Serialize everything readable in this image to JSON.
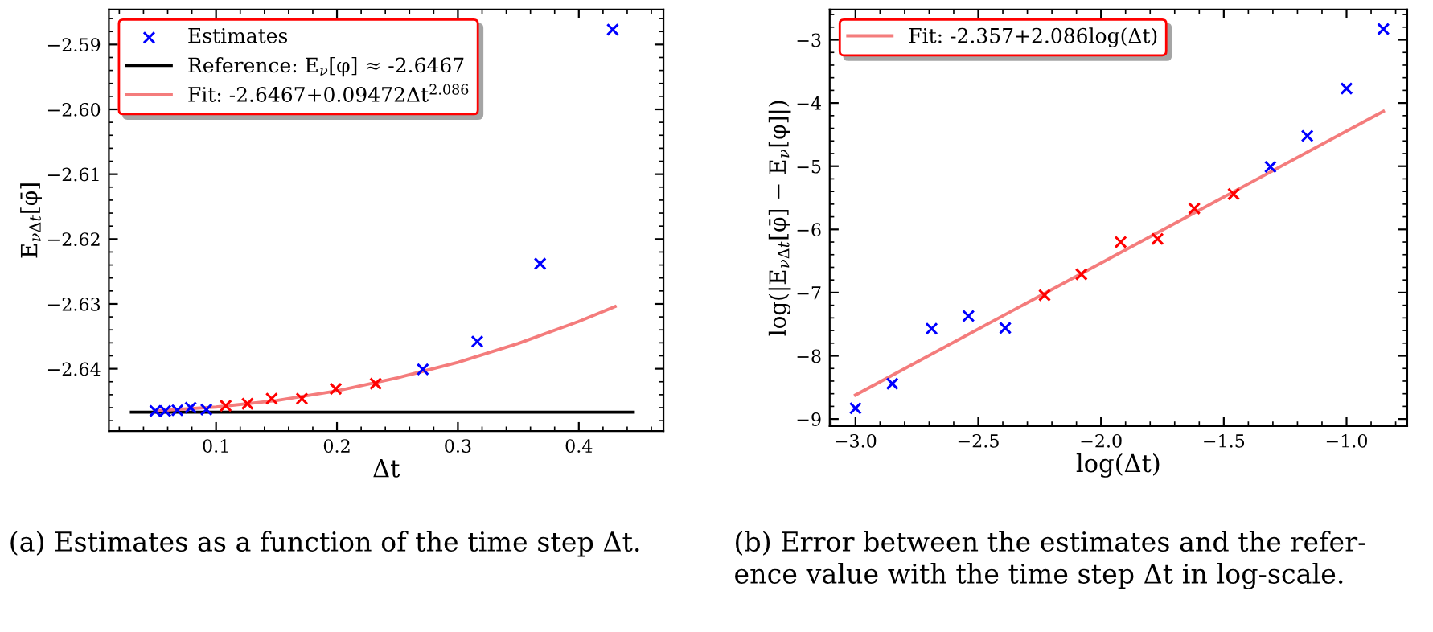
{
  "chart_data": [
    {
      "type": "scatter",
      "xlabel": "Δt",
      "ylabel": "E$_{νΔt}$[φ̄]",
      "xlim": [
        0.0114,
        0.47
      ],
      "ylim": [
        -2.6496,
        -2.5846
      ],
      "xticks": [
        {
          "value": 0.1,
          "label": "0.1"
        },
        {
          "value": 0.2,
          "label": "0.2"
        },
        {
          "value": 0.3,
          "label": "0.3"
        },
        {
          "value": 0.4,
          "label": "0.4"
        }
      ],
      "yticks": [
        {
          "value": -2.64,
          "label": "−2.64"
        },
        {
          "value": -2.63,
          "label": "−2.63"
        },
        {
          "value": -2.62,
          "label": "−2.62"
        },
        {
          "value": -2.61,
          "label": "−2.61"
        },
        {
          "value": -2.6,
          "label": "−2.60"
        },
        {
          "value": -2.59,
          "label": "−2.59"
        }
      ],
      "grid": false,
      "legend": "top left",
      "series": [
        {
          "name": "Estimates",
          "marker": "cross",
          "x": [
            0.0498,
            0.058,
            0.068,
            0.079,
            0.092,
            0.108,
            0.126,
            0.146,
            0.171,
            0.199,
            0.232,
            0.271,
            0.316,
            0.368,
            0.428
          ],
          "values": [
            -2.6465,
            -2.6465,
            -2.6464,
            -2.646,
            -2.6463,
            -2.6457,
            -2.6454,
            -2.6446,
            -2.6446,
            -2.6431,
            -2.6423,
            -2.6401,
            -2.6358,
            -2.6238,
            -2.5877
          ],
          "colors": [
            "#0000ff",
            "#0000ff",
            "#0000ff",
            "#0000ff",
            "#0000ff",
            "#ff0000",
            "#ff0000",
            "#ff0000",
            "#ff0000",
            "#ff0000",
            "#ff0000",
            "#0000ff",
            "#0000ff",
            "#0000ff",
            "#0000ff"
          ]
        },
        {
          "name": "Reference: E$_{ν}$[φ] ≈ -2.6467",
          "type": "line",
          "color": "#000000",
          "x": [
            0.03,
            0.445
          ],
          "values": [
            -2.6467,
            -2.6467
          ]
        },
        {
          "name": "Fit: -2.6467+0.09472Δt$^{2.086}$",
          "type": "line",
          "color": "#f47c7c",
          "x": [
            0.05,
            0.1,
            0.15,
            0.2,
            0.25,
            0.3,
            0.35,
            0.4,
            0.43
          ],
          "values": [
            -2.6465,
            -2.6459,
            -2.6449,
            -2.6434,
            -2.6414,
            -2.639,
            -2.6361,
            -2.6327,
            -2.6304
          ]
        }
      ],
      "annotations": [
        "(a) Estimates as a function of the time step Δt."
      ]
    },
    {
      "type": "scatter",
      "xlabel": "log(Δt)",
      "ylabel": "log(|E$_{νΔt}$[φ̄] − E$_{ν}$[φ]|)",
      "xlim": [
        -3.105,
        -0.753
      ],
      "ylim": [
        -9.11,
        -2.52
      ],
      "xticks": [
        {
          "value": -3.0,
          "label": "−3.0"
        },
        {
          "value": -2.5,
          "label": "−2.5"
        },
        {
          "value": -2.0,
          "label": "−2.0"
        },
        {
          "value": -1.5,
          "label": "−1.5"
        },
        {
          "value": -1.0,
          "label": "−1.0"
        }
      ],
      "yticks": [
        {
          "value": -9,
          "label": "−9"
        },
        {
          "value": -8,
          "label": "−8"
        },
        {
          "value": -7,
          "label": "−7"
        },
        {
          "value": -6,
          "label": "−6"
        },
        {
          "value": -5,
          "label": "−5"
        },
        {
          "value": -4,
          "label": "−4"
        },
        {
          "value": -3,
          "label": "−3"
        }
      ],
      "grid": false,
      "legend": "top left",
      "series": [
        {
          "marker": "cross",
          "x": [
            -3.0,
            -2.85,
            -2.69,
            -2.54,
            -2.39,
            -2.23,
            -2.08,
            -1.92,
            -1.77,
            -1.62,
            -1.46,
            -1.31,
            -1.16,
            -1.0,
            -0.85
          ],
          "values": [
            -8.83,
            -8.44,
            -7.57,
            -7.37,
            -7.56,
            -7.04,
            -6.71,
            -6.2,
            -6.15,
            -5.67,
            -5.44,
            -5.01,
            -4.52,
            -3.77,
            -2.83
          ],
          "colors": [
            "#0000ff",
            "#0000ff",
            "#0000ff",
            "#0000ff",
            "#0000ff",
            "#ff0000",
            "#ff0000",
            "#ff0000",
            "#ff0000",
            "#ff0000",
            "#ff0000",
            "#0000ff",
            "#0000ff",
            "#0000ff",
            "#0000ff"
          ]
        },
        {
          "name": "Fit: -2.357+2.086log(Δt)",
          "type": "line",
          "color": "#f47c7c",
          "x": [
            -3.0,
            -0.85
          ],
          "values": [
            -8.62,
            -4.13
          ]
        }
      ],
      "annotations": [
        "(b) Error between the estimates and the refer-\nence value with the time step Δt in log-scale."
      ]
    }
  ]
}
